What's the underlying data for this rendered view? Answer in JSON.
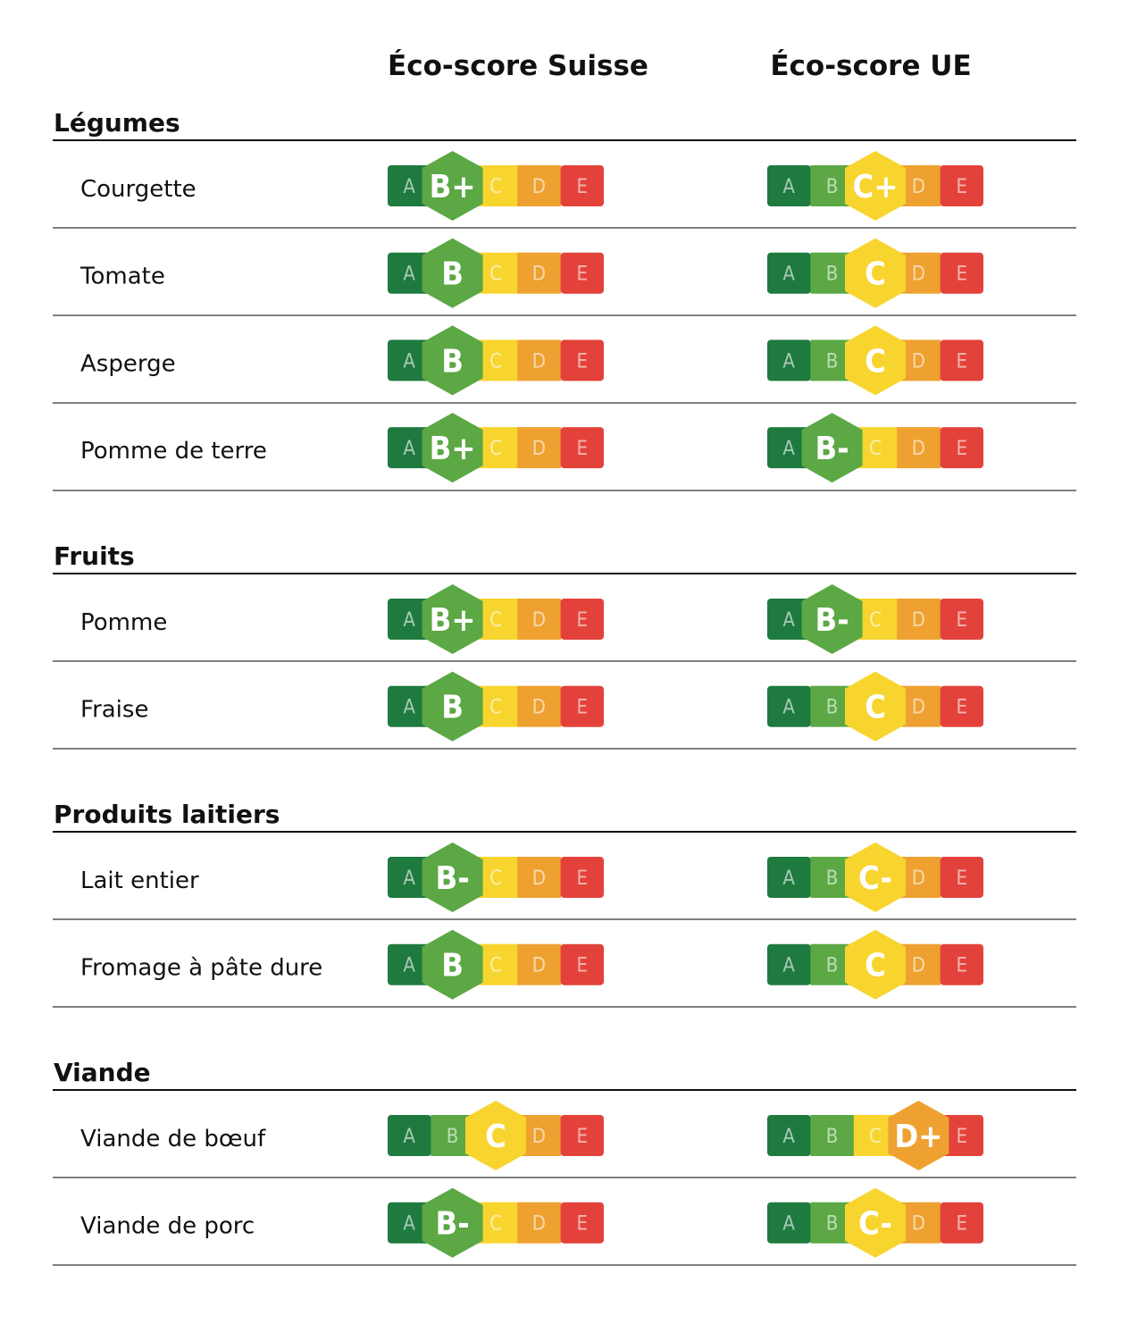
{
  "columns": [
    "Éco-score Suisse",
    "Éco-score UE"
  ],
  "scale": [
    "A",
    "B",
    "C",
    "D",
    "E"
  ],
  "colors": [
    "#1f7a3f",
    "#5ba845",
    "#f8d42e",
    "#eea130",
    "#e3423b"
  ],
  "groups": [
    {
      "title": "Légumes",
      "rows": [
        {
          "name": "Courgette",
          "swiss": "B+",
          "eu": "C+"
        },
        {
          "name": "Tomate",
          "swiss": "B",
          "eu": "C"
        },
        {
          "name": "Asperge",
          "swiss": "B",
          "eu": "C"
        },
        {
          "name": "Pomme de terre",
          "swiss": "B+",
          "eu": "B-"
        }
      ]
    },
    {
      "title": "Fruits",
      "rows": [
        {
          "name": "Pomme",
          "swiss": "B+",
          "eu": "B-"
        },
        {
          "name": "Fraise",
          "swiss": "B",
          "eu": "C"
        }
      ]
    },
    {
      "title": "Produits laitiers",
      "rows": [
        {
          "name": "Lait entier",
          "swiss": "B-",
          "eu": "C-"
        },
        {
          "name": "Fromage à pâte dure",
          "swiss": "B",
          "eu": "C"
        }
      ]
    },
    {
      "title": "Viande",
      "rows": [
        {
          "name": "Viande de bœuf",
          "swiss": "C",
          "eu": "D+"
        },
        {
          "name": "Viande de porc",
          "swiss": "B-",
          "eu": "C-"
        }
      ]
    }
  ]
}
